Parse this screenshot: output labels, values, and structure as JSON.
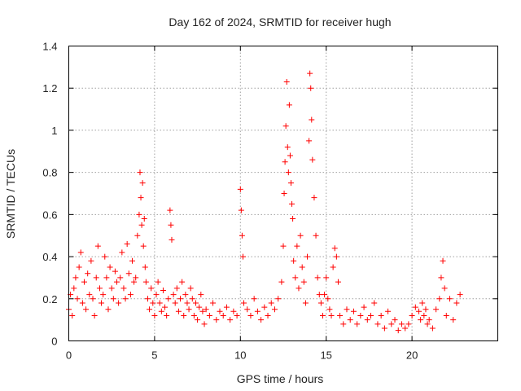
{
  "chart_data": {
    "type": "scatter",
    "title": "Day 162 of 2024, SRMTID for receiver hugh",
    "xlabel": "GPS time / hours",
    "ylabel": "SRMTID / TECUs",
    "xlim": [
      0,
      25
    ],
    "ylim": [
      0,
      1.4
    ],
    "xticks": [
      0,
      5,
      10,
      15,
      20
    ],
    "xtick_labels": [
      "0",
      "5",
      "10",
      "15",
      "20"
    ],
    "yticks": [
      0,
      0.2,
      0.4,
      0.6,
      0.8,
      1,
      1.2,
      1.4
    ],
    "ytick_labels": [
      "0",
      "0.2",
      "0.4",
      "0.6",
      "0.8",
      "1",
      "1.2",
      "1.4"
    ],
    "grid": true,
    "marker": "+",
    "marker_color": "#ff0000",
    "series": [
      {
        "name": "SRMTID",
        "x": [
          0.0,
          0.1,
          0.2,
          0.3,
          0.4,
          0.5,
          0.6,
          0.7,
          0.8,
          0.9,
          1.0,
          1.1,
          1.2,
          1.3,
          1.4,
          1.5,
          1.6,
          1.7,
          1.8,
          1.9,
          2.0,
          2.1,
          2.2,
          2.3,
          2.4,
          2.5,
          2.6,
          2.7,
          2.8,
          2.9,
          3.0,
          3.1,
          3.2,
          3.3,
          3.4,
          3.5,
          3.6,
          3.7,
          3.8,
          3.9,
          4.0,
          4.1,
          4.15,
          4.2,
          4.25,
          4.3,
          4.35,
          4.4,
          4.45,
          4.5,
          4.6,
          4.7,
          4.8,
          4.9,
          5.0,
          5.1,
          5.2,
          5.3,
          5.4,
          5.5,
          5.6,
          5.7,
          5.8,
          5.9,
          5.95,
          6.0,
          6.1,
          6.2,
          6.3,
          6.4,
          6.5,
          6.6,
          6.7,
          6.8,
          6.9,
          7.0,
          7.1,
          7.2,
          7.3,
          7.4,
          7.5,
          7.6,
          7.7,
          7.8,
          7.9,
          8.0,
          8.2,
          8.4,
          8.6,
          8.8,
          9.0,
          9.2,
          9.4,
          9.6,
          9.8,
          10.0,
          10.05,
          10.1,
          10.15,
          10.2,
          10.4,
          10.6,
          10.8,
          11.0,
          11.2,
          11.4,
          11.6,
          11.8,
          12.0,
          12.2,
          12.4,
          12.5,
          12.55,
          12.6,
          12.65,
          12.7,
          12.75,
          12.8,
          12.85,
          12.9,
          12.95,
          13.0,
          13.05,
          13.1,
          13.2,
          13.3,
          13.4,
          13.5,
          13.6,
          13.7,
          13.8,
          13.9,
          14.0,
          14.05,
          14.1,
          14.15,
          14.2,
          14.3,
          14.4,
          14.5,
          14.6,
          14.7,
          14.8,
          14.9,
          15.0,
          15.1,
          15.2,
          15.3,
          15.4,
          15.5,
          15.6,
          15.7,
          15.8,
          16.0,
          16.2,
          16.4,
          16.6,
          16.8,
          17.0,
          17.2,
          17.4,
          17.6,
          17.8,
          18.0,
          18.2,
          18.4,
          18.6,
          18.8,
          19.0,
          19.2,
          19.4,
          19.6,
          19.8,
          20.0,
          20.2,
          20.4,
          20.5,
          20.6,
          20.7,
          20.8,
          20.9,
          21.0,
          21.2,
          21.4,
          21.6,
          21.7,
          21.8,
          21.9,
          22.0,
          22.2,
          22.4,
          22.6,
          22.8
        ],
        "y": [
          0.15,
          0.22,
          0.12,
          0.25,
          0.3,
          0.2,
          0.35,
          0.42,
          0.18,
          0.28,
          0.15,
          0.32,
          0.22,
          0.38,
          0.2,
          0.12,
          0.3,
          0.45,
          0.25,
          0.18,
          0.22,
          0.4,
          0.3,
          0.15,
          0.35,
          0.25,
          0.2,
          0.33,
          0.28,
          0.18,
          0.3,
          0.42,
          0.25,
          0.2,
          0.46,
          0.32,
          0.22,
          0.38,
          0.28,
          0.3,
          0.5,
          0.6,
          0.8,
          0.68,
          0.55,
          0.75,
          0.45,
          0.58,
          0.35,
          0.28,
          0.2,
          0.15,
          0.25,
          0.18,
          0.12,
          0.22,
          0.28,
          0.18,
          0.14,
          0.24,
          0.16,
          0.12,
          0.2,
          0.62,
          0.55,
          0.48,
          0.22,
          0.18,
          0.25,
          0.14,
          0.2,
          0.28,
          0.12,
          0.22,
          0.18,
          0.15,
          0.25,
          0.2,
          0.12,
          0.18,
          0.1,
          0.16,
          0.22,
          0.14,
          0.08,
          0.15,
          0.12,
          0.18,
          0.1,
          0.14,
          0.12,
          0.16,
          0.1,
          0.14,
          0.12,
          0.72,
          0.62,
          0.5,
          0.4,
          0.18,
          0.15,
          0.12,
          0.2,
          0.14,
          0.1,
          0.16,
          0.12,
          0.18,
          0.15,
          0.2,
          0.28,
          0.45,
          0.7,
          0.85,
          1.02,
          1.23,
          0.92,
          0.8,
          1.12,
          0.88,
          0.75,
          0.65,
          0.58,
          0.38,
          0.3,
          0.45,
          0.25,
          0.5,
          0.35,
          0.28,
          0.18,
          0.4,
          0.95,
          1.27,
          1.2,
          1.05,
          0.86,
          0.68,
          0.5,
          0.3,
          0.22,
          0.18,
          0.12,
          0.22,
          0.3,
          0.2,
          0.15,
          0.12,
          0.35,
          0.44,
          0.4,
          0.28,
          0.12,
          0.08,
          0.15,
          0.1,
          0.14,
          0.08,
          0.12,
          0.16,
          0.1,
          0.12,
          0.18,
          0.08,
          0.12,
          0.06,
          0.14,
          0.08,
          0.1,
          0.05,
          0.08,
          0.06,
          0.08,
          0.12,
          0.16,
          0.14,
          0.1,
          0.18,
          0.12,
          0.15,
          0.08,
          0.1,
          0.06,
          0.15,
          0.2,
          0.3,
          0.38,
          0.25,
          0.12,
          0.2,
          0.1,
          0.18,
          0.22
        ]
      }
    ]
  }
}
